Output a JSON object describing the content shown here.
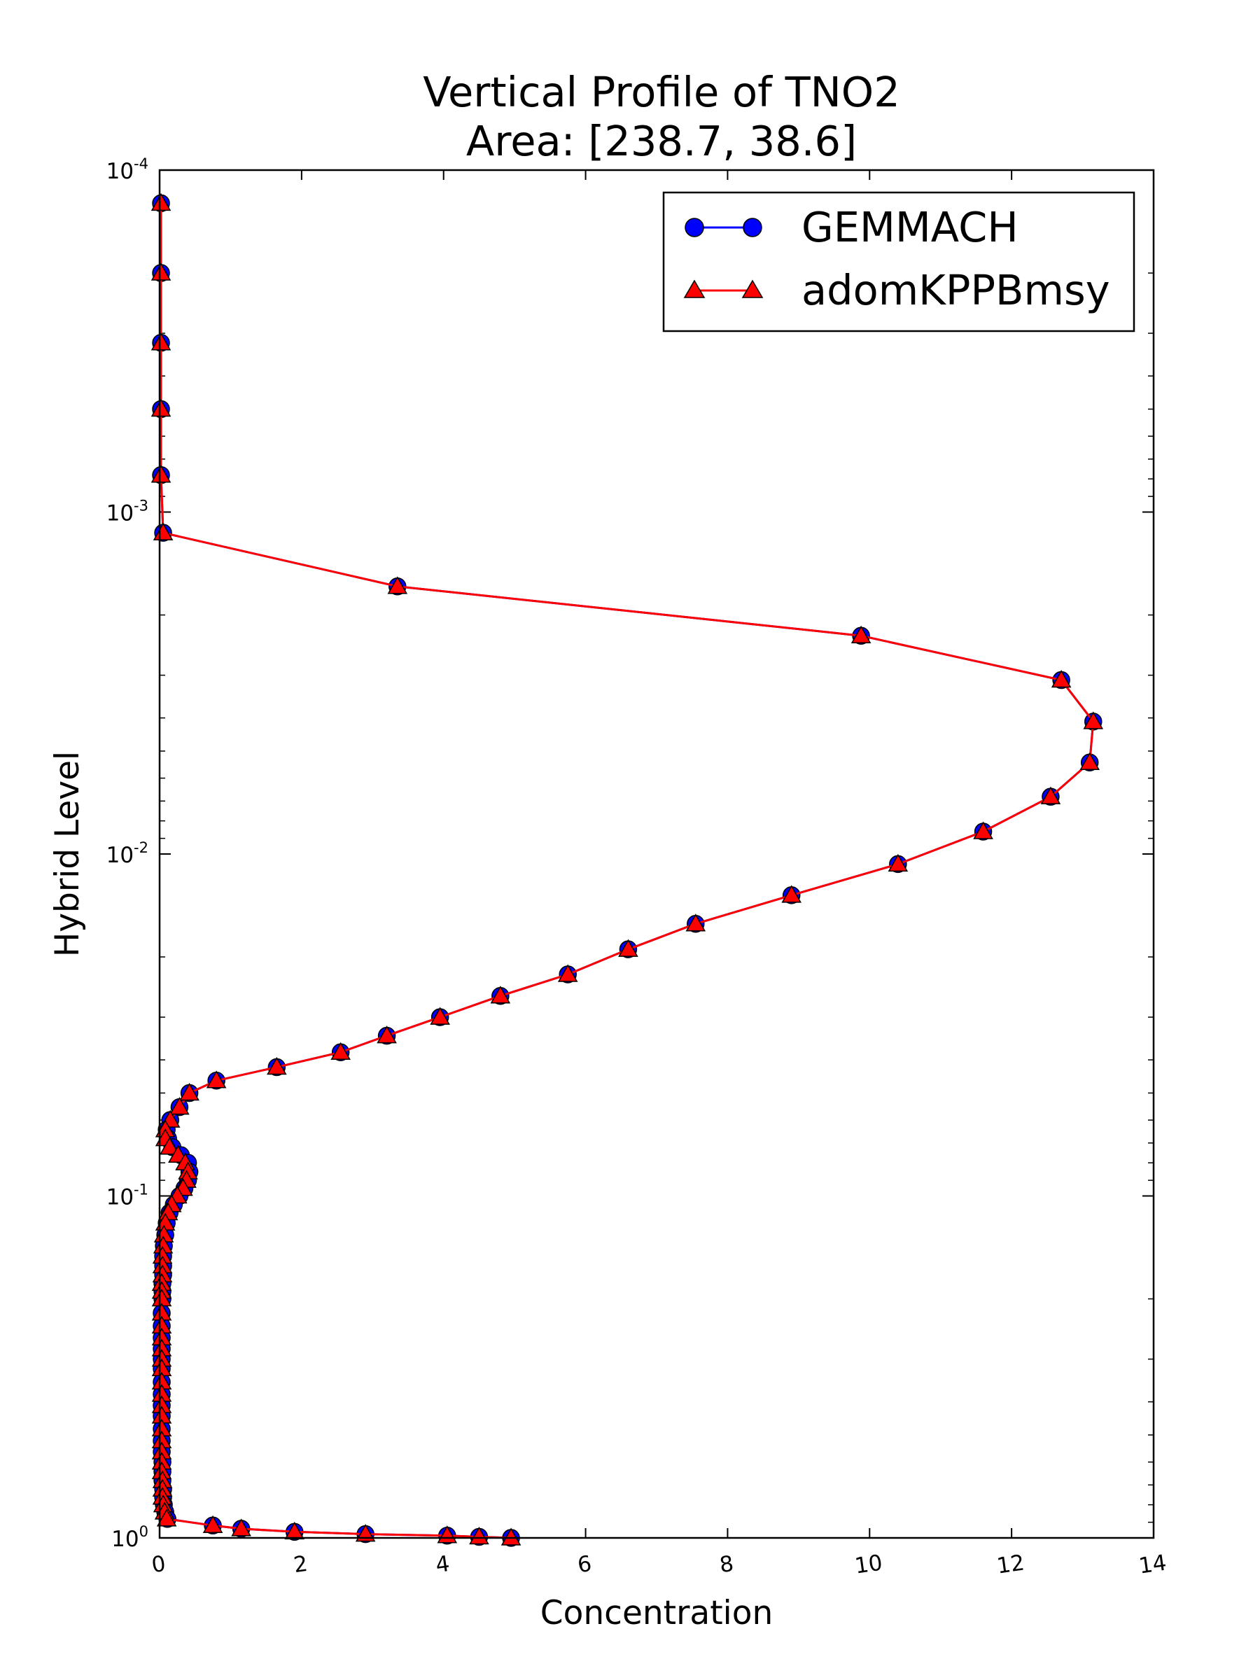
{
  "chart_data": {
    "type": "line",
    "title": "Vertical Profile of TNO2",
    "subtitle": "Area: [238.7, 38.6]",
    "xlabel": "Concentration",
    "ylabel": "Hybrid Level",
    "xlim": [
      0,
      14
    ],
    "ylim": [
      0.0001,
      1
    ],
    "yscale": "log",
    "y_inverted": true,
    "grid": false,
    "legend_position": "top-right",
    "x_ticks": [
      "0",
      "2",
      "4",
      "6",
      "8",
      "10",
      "12",
      "14"
    ],
    "x_tick_values": [
      0,
      2,
      4,
      6,
      8,
      10,
      12,
      14
    ],
    "y_ticks": [
      {
        "base": "10",
        "exp": "-4"
      },
      {
        "base": "10",
        "exp": "-3"
      },
      {
        "base": "10",
        "exp": "-2"
      },
      {
        "base": "10",
        "exp": "-1"
      },
      {
        "base": "10",
        "exp": "0"
      }
    ],
    "y_tick_values": [
      0.0001,
      0.001,
      0.01,
      0.1,
      1
    ],
    "series": [
      {
        "name": "GEMMACH",
        "color": "#0000ff",
        "marker": "circle",
        "x": [
          0.02,
          0.02,
          0.02,
          0.02,
          0.02,
          0.05,
          3.35,
          9.88,
          12.7,
          13.15,
          13.1,
          12.55,
          11.6,
          10.4,
          8.9,
          7.55,
          6.6,
          5.75,
          4.8,
          3.95,
          3.2,
          2.55,
          1.65,
          0.8,
          0.42,
          0.28,
          0.15,
          0.1,
          0.12,
          0.18,
          0.3,
          0.4,
          0.42,
          0.4,
          0.35,
          0.28,
          0.2,
          0.14,
          0.1,
          0.08,
          0.06,
          0.05,
          0.05,
          0.05,
          0.04,
          0.04,
          0.04,
          0.03,
          0.03,
          0.03,
          0.03,
          0.03,
          0.03,
          0.03,
          0.03,
          0.03,
          0.03,
          0.03,
          0.03,
          0.03,
          0.04,
          0.04,
          0.04,
          0.05,
          0.05,
          0.06,
          0.08,
          0.11,
          0.75,
          1.15,
          1.9,
          2.9,
          4.05,
          4.5,
          4.95
        ],
        "y": [
          0.000125,
          0.0002,
          0.00032,
          0.0005,
          0.00078,
          0.00115,
          0.00165,
          0.0023,
          0.0031,
          0.0041,
          0.0054,
          0.0068,
          0.0086,
          0.0107,
          0.0132,
          0.016,
          0.019,
          0.0225,
          0.026,
          0.03,
          0.034,
          0.038,
          0.042,
          0.046,
          0.05,
          0.055,
          0.06,
          0.064,
          0.068,
          0.072,
          0.076,
          0.08,
          0.085,
          0.09,
          0.095,
          0.1,
          0.106,
          0.112,
          0.12,
          0.13,
          0.14,
          0.15,
          0.16,
          0.17,
          0.18,
          0.19,
          0.2,
          0.22,
          0.24,
          0.26,
          0.28,
          0.3,
          0.32,
          0.35,
          0.38,
          0.41,
          0.44,
          0.48,
          0.52,
          0.56,
          0.6,
          0.64,
          0.68,
          0.72,
          0.76,
          0.8,
          0.84,
          0.88,
          0.92,
          0.94,
          0.96,
          0.975,
          0.985,
          0.993,
          1.0
        ]
      },
      {
        "name": "adomKPPBmsy",
        "color": "#ff0000",
        "marker": "triangle",
        "x": [
          0.02,
          0.02,
          0.02,
          0.02,
          0.02,
          0.05,
          3.35,
          9.88,
          12.7,
          13.15,
          13.1,
          12.55,
          11.6,
          10.4,
          8.9,
          7.55,
          6.6,
          5.75,
          4.8,
          3.95,
          3.2,
          2.55,
          1.65,
          0.8,
          0.42,
          0.28,
          0.15,
          0.08,
          0.08,
          0.14,
          0.26,
          0.36,
          0.4,
          0.38,
          0.33,
          0.25,
          0.17,
          0.12,
          0.08,
          0.06,
          0.05,
          0.04,
          0.04,
          0.04,
          0.03,
          0.03,
          0.03,
          0.03,
          0.03,
          0.03,
          0.03,
          0.03,
          0.03,
          0.03,
          0.03,
          0.03,
          0.03,
          0.03,
          0.03,
          0.03,
          0.03,
          0.03,
          0.04,
          0.04,
          0.04,
          0.05,
          0.07,
          0.1,
          0.75,
          1.15,
          1.9,
          2.9,
          4.05,
          4.5,
          4.95
        ],
        "y": [
          0.000125,
          0.0002,
          0.00032,
          0.0005,
          0.00078,
          0.00115,
          0.00165,
          0.0023,
          0.0031,
          0.0041,
          0.0054,
          0.0068,
          0.0086,
          0.0107,
          0.0132,
          0.016,
          0.019,
          0.0225,
          0.026,
          0.03,
          0.034,
          0.038,
          0.042,
          0.046,
          0.05,
          0.055,
          0.06,
          0.064,
          0.068,
          0.072,
          0.076,
          0.08,
          0.085,
          0.09,
          0.095,
          0.1,
          0.106,
          0.112,
          0.12,
          0.13,
          0.14,
          0.15,
          0.16,
          0.17,
          0.18,
          0.19,
          0.2,
          0.22,
          0.24,
          0.26,
          0.28,
          0.3,
          0.32,
          0.35,
          0.38,
          0.41,
          0.44,
          0.48,
          0.52,
          0.56,
          0.6,
          0.64,
          0.68,
          0.72,
          0.76,
          0.8,
          0.84,
          0.88,
          0.92,
          0.94,
          0.96,
          0.975,
          0.985,
          0.993,
          1.0
        ]
      }
    ]
  }
}
